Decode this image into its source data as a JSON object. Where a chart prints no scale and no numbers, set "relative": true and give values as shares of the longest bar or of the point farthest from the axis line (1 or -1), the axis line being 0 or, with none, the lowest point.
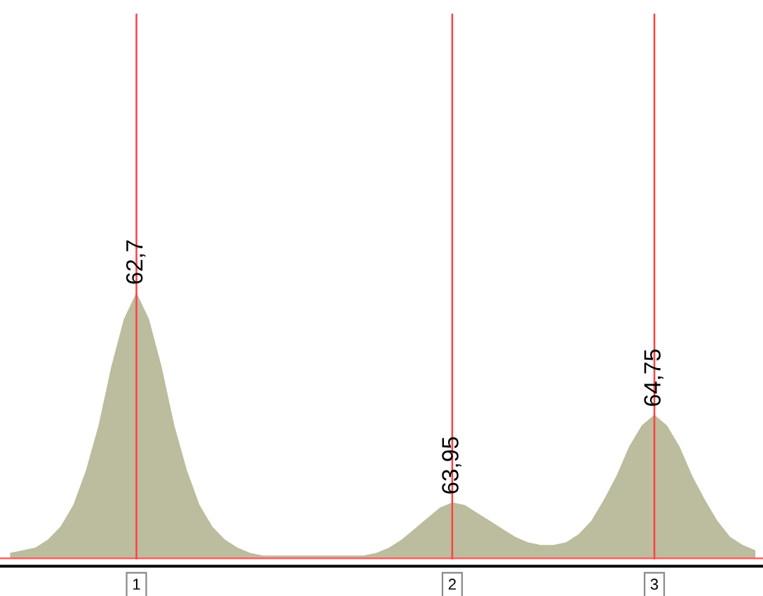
{
  "chart_data": {
    "type": "area",
    "relative": true,
    "grid": "x",
    "categories": [
      null,
      null,
      null,
      null,
      null,
      null,
      null,
      null,
      null,
      null,
      null,
      null,
      null,
      null,
      null,
      null,
      null,
      null,
      null,
      null,
      null,
      null,
      null,
      null,
      null,
      null,
      null,
      null,
      null,
      null,
      null,
      null,
      null,
      null,
      null,
      null,
      null,
      null,
      null,
      null,
      null,
      null,
      null,
      null,
      null,
      null,
      null,
      null,
      null,
      null,
      null,
      null,
      null,
      null,
      null,
      null,
      null,
      null,
      null,
      null
    ],
    "series": [
      {
        "color": "#bcbc9e",
        "values": [
          0.02,
          0.03,
          0.04,
          0.07,
          0.12,
          0.2,
          0.33,
          0.5,
          0.72,
          0.9,
          1.0,
          0.9,
          0.72,
          0.5,
          0.33,
          0.2,
          0.12,
          0.07,
          0.04,
          0.02,
          0.01,
          0.01,
          0.01,
          0.01,
          0.01,
          0.01,
          0.01,
          0.01,
          0.01,
          0.02,
          0.04,
          0.07,
          0.11,
          0.15,
          0.19,
          0.21,
          0.2,
          0.17,
          0.14,
          0.11,
          0.08,
          0.06,
          0.05,
          0.05,
          0.06,
          0.09,
          0.14,
          0.22,
          0.31,
          0.42,
          0.5,
          0.54,
          0.5,
          0.42,
          0.31,
          0.22,
          0.14,
          0.08,
          0.05,
          0.03
        ]
      }
    ],
    "ref_lines": [
      {
        "axis": "y",
        "value": 0,
        "color": "#ff6060"
      }
    ],
    "annotations": [
      {
        "text": "62,7",
        "y": 1.0
      },
      {
        "text": "63,95",
        "y": 0.21
      },
      {
        "text": "64,75",
        "y": 0.54
      },
      "1",
      "2",
      "3"
    ]
  }
}
